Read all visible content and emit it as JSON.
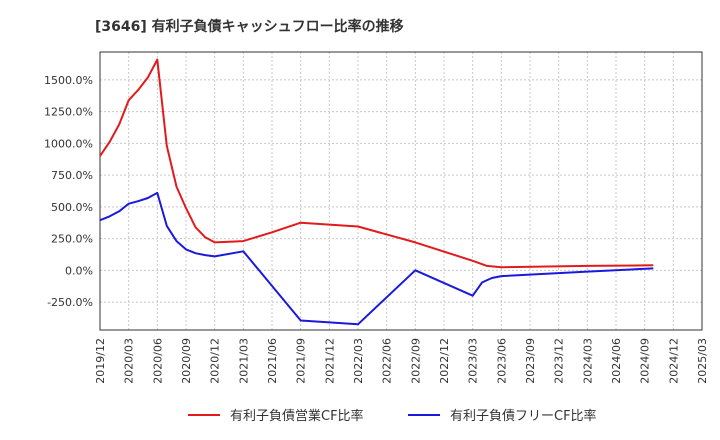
{
  "chart_data": {
    "type": "line",
    "title": "[3646]  有利子負債キャッシュフロー比率の推移",
    "xlabel": "",
    "ylabel": "",
    "ylim": [
      -470,
      1720
    ],
    "y_ticks": [
      -250,
      0,
      250,
      500,
      750,
      1000,
      1250,
      1500
    ],
    "y_tick_labels": [
      "-250.0%",
      "0.0%",
      "250.0%",
      "500.0%",
      "750.0%",
      "1000.0%",
      "1250.0%",
      "1500.0%"
    ],
    "x_tick_labels": [
      "2019/12",
      "2020/03",
      "2020/06",
      "2020/09",
      "2020/12",
      "2021/03",
      "2021/06",
      "2021/09",
      "2021/12",
      "2022/03",
      "2022/06",
      "2022/09",
      "2022/12",
      "2023/03",
      "2023/06",
      "2023/09",
      "2023/12",
      "2024/03",
      "2024/06",
      "2024/09",
      "2024/12",
      "2025/03"
    ],
    "grid": true,
    "legend_position": "bottom",
    "series": [
      {
        "name": "有利子負債営業CF比率",
        "color": "#e31a1c",
        "points": [
          [
            0,
            900
          ],
          [
            0.33,
            1010
          ],
          [
            0.67,
            1150
          ],
          [
            1,
            1340
          ],
          [
            1.33,
            1420
          ],
          [
            1.67,
            1520
          ],
          [
            2,
            1660
          ],
          [
            2.33,
            980
          ],
          [
            2.67,
            660
          ],
          [
            3,
            490
          ],
          [
            3.33,
            340
          ],
          [
            3.67,
            260
          ],
          [
            4,
            220
          ],
          [
            5,
            230
          ],
          [
            6,
            300
          ],
          [
            7,
            375
          ],
          [
            9,
            345
          ],
          [
            11,
            220
          ],
          [
            13,
            75
          ],
          [
            13.5,
            35
          ],
          [
            14,
            25
          ],
          [
            17,
            35
          ],
          [
            19.3,
            40
          ]
        ]
      },
      {
        "name": "有利子負債フリーCF比率",
        "color": "#1a1adb",
        "points": [
          [
            0,
            395
          ],
          [
            0.33,
            425
          ],
          [
            0.67,
            465
          ],
          [
            1,
            525
          ],
          [
            1.33,
            545
          ],
          [
            1.67,
            570
          ],
          [
            2,
            610
          ],
          [
            2.33,
            350
          ],
          [
            2.67,
            230
          ],
          [
            3,
            165
          ],
          [
            3.33,
            135
          ],
          [
            3.67,
            120
          ],
          [
            4,
            110
          ],
          [
            5,
            150
          ],
          [
            7,
            -395
          ],
          [
            9,
            -425
          ],
          [
            11,
            0
          ],
          [
            13,
            -200
          ],
          [
            13.33,
            -95
          ],
          [
            13.67,
            -60
          ],
          [
            14,
            -45
          ],
          [
            17,
            -10
          ],
          [
            19.3,
            15
          ]
        ]
      }
    ]
  }
}
